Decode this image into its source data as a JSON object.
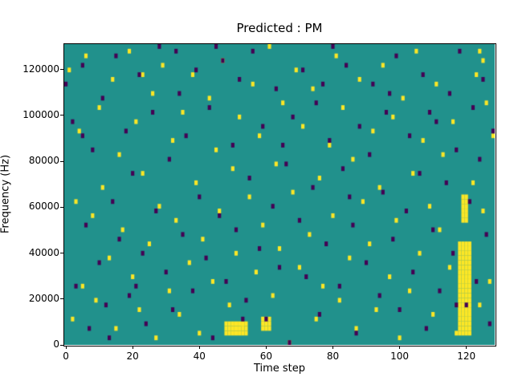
{
  "chart_data": {
    "type": "heatmap",
    "title": "Predicted : PM",
    "xlabel": "Time step",
    "ylabel": "Frequency (Hz)",
    "xlim": [
      0,
      129
    ],
    "ylim": [
      0,
      131072
    ],
    "x_ticks": [
      0,
      20,
      40,
      60,
      80,
      100,
      120
    ],
    "y_ticks": [
      0,
      20000,
      40000,
      60000,
      80000,
      100000,
      120000
    ],
    "grid": {
      "cols": 129,
      "rows": 64
    },
    "legend": "none",
    "colors": {
      "background": "#21918c",
      "high": "#fde725",
      "low": "#440154",
      "frame": "#000000"
    },
    "blocks_high": [
      {
        "t0": 118,
        "t1": 121,
        "b0": 2,
        "b1": 21
      },
      {
        "t0": 119,
        "t1": 120,
        "b0": 26,
        "b1": 31
      },
      {
        "t0": 48,
        "t1": 54,
        "b0": 2,
        "b1": 4
      },
      {
        "t0": 59,
        "t1": 61,
        "b0": 3,
        "b1": 5
      }
    ],
    "cells_high": [
      [
        1,
        58
      ],
      [
        2,
        5
      ],
      [
        3,
        30
      ],
      [
        4,
        45
      ],
      [
        5,
        12
      ],
      [
        6,
        61
      ],
      [
        8,
        27
      ],
      [
        9,
        9
      ],
      [
        10,
        50
      ],
      [
        11,
        33
      ],
      [
        13,
        18
      ],
      [
        14,
        56
      ],
      [
        15,
        3
      ],
      [
        16,
        40
      ],
      [
        17,
        24
      ],
      [
        19,
        62
      ],
      [
        20,
        14
      ],
      [
        21,
        47
      ],
      [
        22,
        7
      ],
      [
        23,
        36
      ],
      [
        23,
        57
      ],
      [
        25,
        21
      ],
      [
        26,
        53
      ],
      [
        27,
        1
      ],
      [
        28,
        29
      ],
      [
        29,
        59
      ],
      [
        31,
        11
      ],
      [
        32,
        43
      ],
      [
        33,
        26
      ],
      [
        34,
        6
      ],
      [
        35,
        49
      ],
      [
        37,
        17
      ],
      [
        38,
        57
      ],
      [
        39,
        34
      ],
      [
        40,
        2
      ],
      [
        41,
        22
      ],
      [
        43,
        52
      ],
      [
        44,
        13
      ],
      [
        45,
        41
      ],
      [
        46,
        28
      ],
      [
        47,
        60
      ],
      [
        49,
        8
      ],
      [
        50,
        37
      ],
      [
        51,
        19
      ],
      [
        52,
        48
      ],
      [
        53,
        4
      ],
      [
        55,
        31
      ],
      [
        56,
        55
      ],
      [
        57,
        15
      ],
      [
        58,
        44
      ],
      [
        59,
        25
      ],
      [
        61,
        63
      ],
      [
        62,
        10
      ],
      [
        63,
        38
      ],
      [
        64,
        20
      ],
      [
        65,
        51
      ],
      [
        67,
        0
      ],
      [
        68,
        32
      ],
      [
        69,
        58
      ],
      [
        70,
        16
      ],
      [
        71,
        46
      ],
      [
        73,
        23
      ],
      [
        74,
        54
      ],
      [
        75,
        5
      ],
      [
        76,
        35
      ],
      [
        77,
        12
      ],
      [
        79,
        42
      ],
      [
        80,
        27
      ],
      [
        81,
        61
      ],
      [
        82,
        9
      ],
      [
        83,
        50
      ],
      [
        85,
        18
      ],
      [
        86,
        39
      ],
      [
        87,
        3
      ],
      [
        88,
        56
      ],
      [
        89,
        30
      ],
      [
        91,
        21
      ],
      [
        92,
        45
      ],
      [
        93,
        7
      ],
      [
        94,
        33
      ],
      [
        95,
        59
      ],
      [
        97,
        14
      ],
      [
        98,
        48
      ],
      [
        99,
        26
      ],
      [
        100,
        1
      ],
      [
        101,
        52
      ],
      [
        103,
        11
      ],
      [
        104,
        36
      ],
      [
        105,
        62
      ],
      [
        106,
        19
      ],
      [
        107,
        43
      ],
      [
        109,
        29
      ],
      [
        110,
        6
      ],
      [
        111,
        55
      ],
      [
        112,
        24
      ],
      [
        113,
        40
      ],
      [
        115,
        16
      ],
      [
        116,
        47
      ],
      [
        117,
        2
      ],
      [
        122,
        34
      ],
      [
        123,
        57
      ],
      [
        124,
        8
      ],
      [
        124,
        62
      ],
      [
        125,
        28
      ],
      [
        125,
        60
      ],
      [
        126,
        51
      ],
      [
        127,
        13
      ],
      [
        128,
        44
      ]
    ],
    "cells_low": [
      [
        0,
        55
      ],
      [
        2,
        47
      ],
      [
        3,
        12
      ],
      [
        5,
        59
      ],
      [
        5,
        44
      ],
      [
        6,
        25
      ],
      [
        7,
        3
      ],
      [
        8,
        41
      ],
      [
        10,
        17
      ],
      [
        11,
        52
      ],
      [
        12,
        8
      ],
      [
        13,
        1
      ],
      [
        14,
        30
      ],
      [
        15,
        61
      ],
      [
        16,
        22
      ],
      [
        18,
        45
      ],
      [
        19,
        10
      ],
      [
        20,
        36
      ],
      [
        21,
        12
      ],
      [
        22,
        57
      ],
      [
        23,
        19
      ],
      [
        24,
        4
      ],
      [
        26,
        49
      ],
      [
        27,
        28
      ],
      [
        28,
        63
      ],
      [
        30,
        15
      ],
      [
        31,
        39
      ],
      [
        32,
        7
      ],
      [
        33,
        62
      ],
      [
        34,
        53
      ],
      [
        35,
        23
      ],
      [
        36,
        44
      ],
      [
        38,
        11
      ],
      [
        39,
        58
      ],
      [
        40,
        31
      ],
      [
        42,
        18
      ],
      [
        43,
        50
      ],
      [
        44,
        1
      ],
      [
        45,
        63
      ],
      [
        46,
        27
      ],
      [
        47,
        60
      ],
      [
        48,
        13
      ],
      [
        50,
        42
      ],
      [
        51,
        24
      ],
      [
        52,
        56
      ],
      [
        53,
        5
      ],
      [
        54,
        9
      ],
      [
        55,
        35
      ],
      [
        56,
        62
      ],
      [
        58,
        20
      ],
      [
        59,
        46
      ],
      [
        60,
        5
      ],
      [
        62,
        29
      ],
      [
        63,
        54
      ],
      [
        64,
        16
      ],
      [
        65,
        42
      ],
      [
        66,
        38
      ],
      [
        67,
        0
      ],
      [
        68,
        48
      ],
      [
        70,
        26
      ],
      [
        71,
        58
      ],
      [
        72,
        14
      ],
      [
        74,
        33
      ],
      [
        75,
        51
      ],
      [
        76,
        6
      ],
      [
        77,
        55
      ],
      [
        78,
        21
      ],
      [
        79,
        43
      ],
      [
        80,
        63
      ],
      [
        82,
        12
      ],
      [
        83,
        37
      ],
      [
        84,
        59
      ],
      [
        85,
        31
      ],
      [
        86,
        25
      ],
      [
        87,
        2
      ],
      [
        88,
        46
      ],
      [
        90,
        17
      ],
      [
        91,
        40
      ],
      [
        92,
        55
      ],
      [
        94,
        10
      ],
      [
        95,
        32
      ],
      [
        96,
        49
      ],
      [
        97,
        53
      ],
      [
        98,
        22
      ],
      [
        99,
        61
      ],
      [
        100,
        7
      ],
      [
        102,
        28
      ],
      [
        103,
        44
      ],
      [
        104,
        15
      ],
      [
        106,
        36
      ],
      [
        107,
        57
      ],
      [
        108,
        3
      ],
      [
        109,
        49
      ],
      [
        110,
        24
      ],
      [
        111,
        47
      ],
      [
        112,
        11
      ],
      [
        114,
        34
      ],
      [
        115,
        53
      ],
      [
        116,
        19
      ],
      [
        117,
        41
      ],
      [
        117,
        8
      ],
      [
        118,
        62
      ],
      [
        120,
        8
      ],
      [
        121,
        30
      ],
      [
        122,
        50
      ],
      [
        123,
        13
      ],
      [
        124,
        39
      ],
      [
        125,
        56
      ],
      [
        126,
        23
      ],
      [
        127,
        4
      ],
      [
        128,
        45
      ]
    ]
  }
}
